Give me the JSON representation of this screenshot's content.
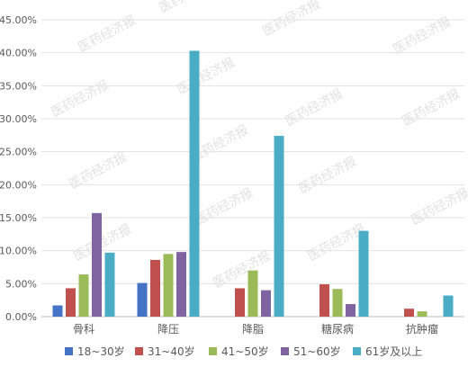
{
  "chart_data": {
    "type": "bar",
    "title": "",
    "xlabel": "",
    "ylabel": "",
    "categories": [
      "骨科",
      "降压",
      "降脂",
      "糖尿病",
      "抗肿瘤"
    ],
    "series": [
      {
        "name": "18~30岁",
        "values": [
          1.7,
          5.1,
          0,
          0,
          0
        ],
        "color": "#4472C4"
      },
      {
        "name": "31~40岁",
        "values": [
          4.3,
          8.6,
          4.3,
          4.9,
          1.2
        ],
        "color": "#C0504D"
      },
      {
        "name": "41~50岁",
        "values": [
          6.4,
          9.5,
          7.0,
          4.2,
          0.8
        ],
        "color": "#9BBB59"
      },
      {
        "name": "51~60岁",
        "values": [
          15.7,
          9.8,
          4.0,
          1.9,
          0
        ],
        "color": "#8064A2"
      },
      {
        "name": "61岁及以上",
        "values": [
          9.7,
          40.3,
          27.4,
          13.0,
          3.2
        ],
        "color": "#4BACC6"
      }
    ],
    "y_ticks": [
      "0.00%",
      "5.00%",
      "10.00%",
      "15.00%",
      "20.00%",
      "25.00%",
      "30.00%",
      "35.00%",
      "40.00%",
      "45.00%"
    ],
    "ylim": [
      0,
      45
    ],
    "grid": true,
    "legend_position": "bottom",
    "watermark": "医药经济报"
  }
}
